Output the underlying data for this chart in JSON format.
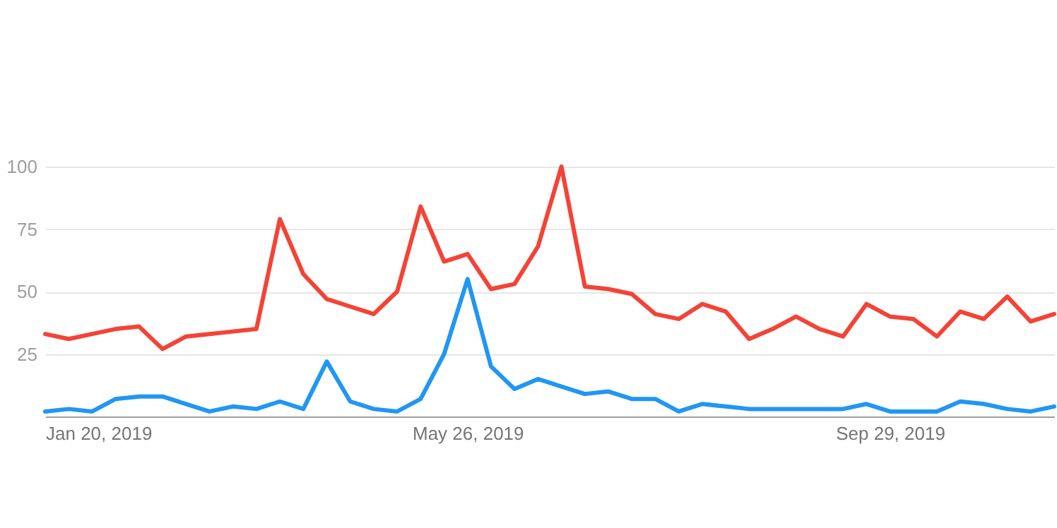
{
  "chart_data": {
    "type": "line",
    "x": [
      "2019-01-20",
      "2019-01-27",
      "2019-02-03",
      "2019-02-10",
      "2019-02-17",
      "2019-02-24",
      "2019-03-03",
      "2019-03-10",
      "2019-03-17",
      "2019-03-24",
      "2019-03-31",
      "2019-04-07",
      "2019-04-14",
      "2019-04-21",
      "2019-04-28",
      "2019-05-05",
      "2019-05-12",
      "2019-05-19",
      "2019-05-26",
      "2019-06-02",
      "2019-06-09",
      "2019-06-16",
      "2019-06-23",
      "2019-06-30",
      "2019-07-07",
      "2019-07-14",
      "2019-07-21",
      "2019-07-28",
      "2019-08-04",
      "2019-08-11",
      "2019-08-18",
      "2019-08-25",
      "2019-09-01",
      "2019-09-08",
      "2019-09-15",
      "2019-09-22",
      "2019-09-29",
      "2019-10-06",
      "2019-10-13",
      "2019-10-20",
      "2019-10-27",
      "2019-11-03",
      "2019-11-10",
      "2019-11-17"
    ],
    "series": [
      {
        "color": "#f44336",
        "values": [
          33,
          31,
          33,
          35,
          36,
          27,
          32,
          33,
          34,
          35,
          79,
          57,
          47,
          44,
          41,
          50,
          84,
          62,
          65,
          51,
          53,
          68,
          100,
          52,
          51,
          49,
          41,
          39,
          45,
          42,
          31,
          35,
          40,
          35,
          32,
          45,
          40,
          39,
          32,
          42,
          39,
          48,
          38,
          41
        ]
      },
      {
        "color": "#2196f3",
        "values": [
          2,
          3,
          2,
          7,
          8,
          8,
          5,
          2,
          4,
          3,
          6,
          3,
          22,
          6,
          3,
          2,
          7,
          25,
          55,
          20,
          11,
          15,
          12,
          9,
          10,
          7,
          7,
          2,
          5,
          4,
          3,
          3,
          3,
          3,
          3,
          5,
          2,
          2,
          2,
          6,
          5,
          3,
          2,
          4
        ]
      }
    ],
    "xlim": [
      "2019-01-20",
      "2019-11-17"
    ],
    "xticks": [
      {
        "value": "2019-01-20",
        "label": "Jan 20, 2019"
      },
      {
        "value": "2019-05-26",
        "label": "May 26, 2019"
      },
      {
        "value": "2019-09-29",
        "label": "Sep 29, 2019"
      }
    ],
    "ylim": [
      0,
      100
    ],
    "yticks": [
      25,
      50,
      75,
      100
    ],
    "grid": "y",
    "legend": false,
    "marker": "none",
    "line_style": "solid"
  }
}
